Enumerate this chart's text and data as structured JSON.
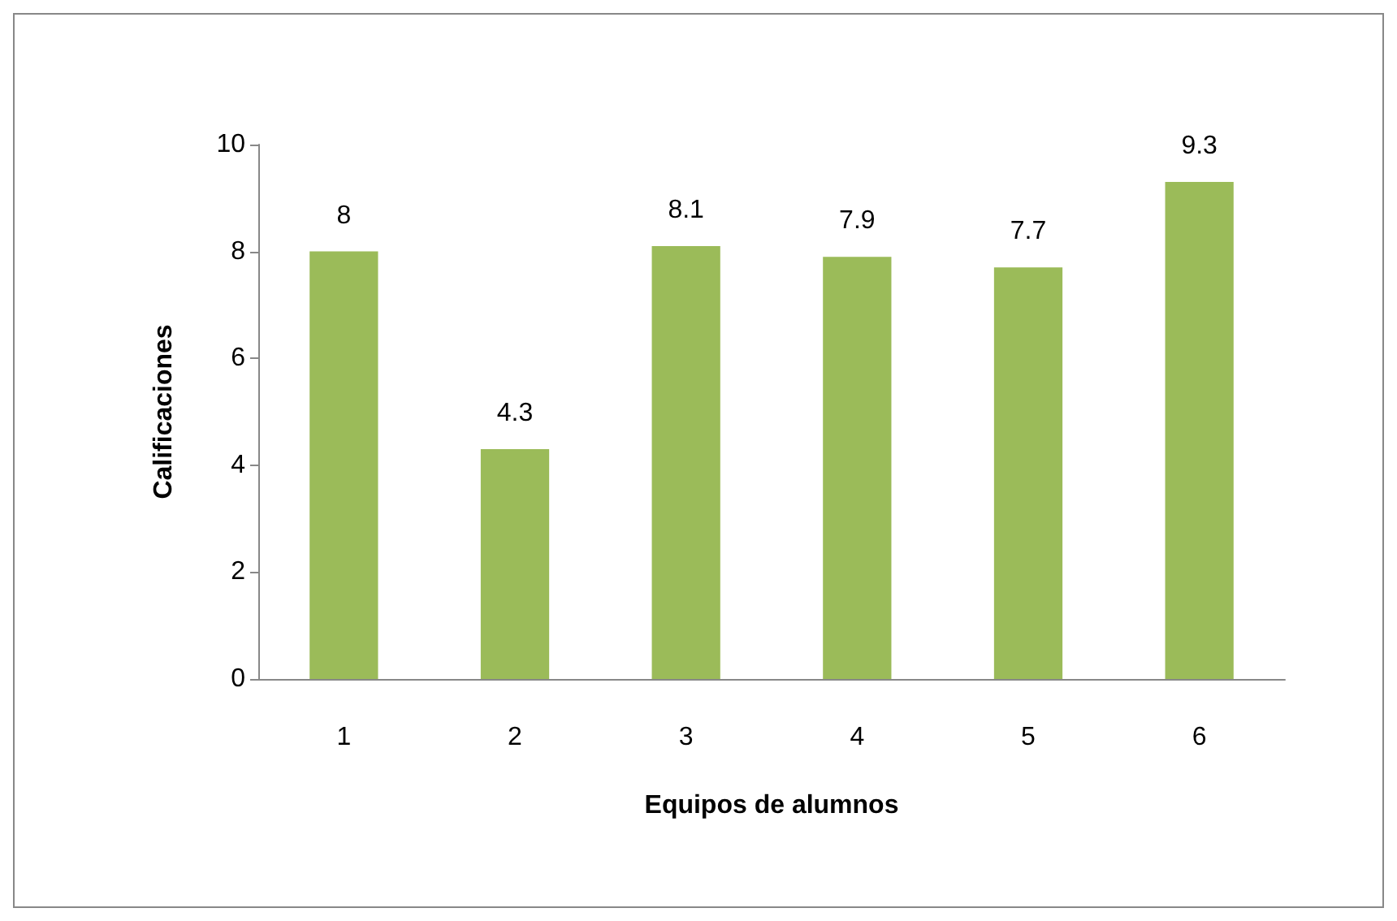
{
  "chart_data": {
    "type": "bar",
    "xlabel": "Equipos de alumnos",
    "ylabel": "Calificaciones",
    "categories": [
      "1",
      "2",
      "3",
      "4",
      "5",
      "6"
    ],
    "values": [
      8,
      4.3,
      8.1,
      7.9,
      7.7,
      9.3
    ],
    "color": "#9bbb59",
    "ylim": [
      0,
      10
    ],
    "yticks": [
      0,
      2,
      4,
      6,
      8,
      10
    ],
    "grid": false,
    "data_labels": true
  }
}
